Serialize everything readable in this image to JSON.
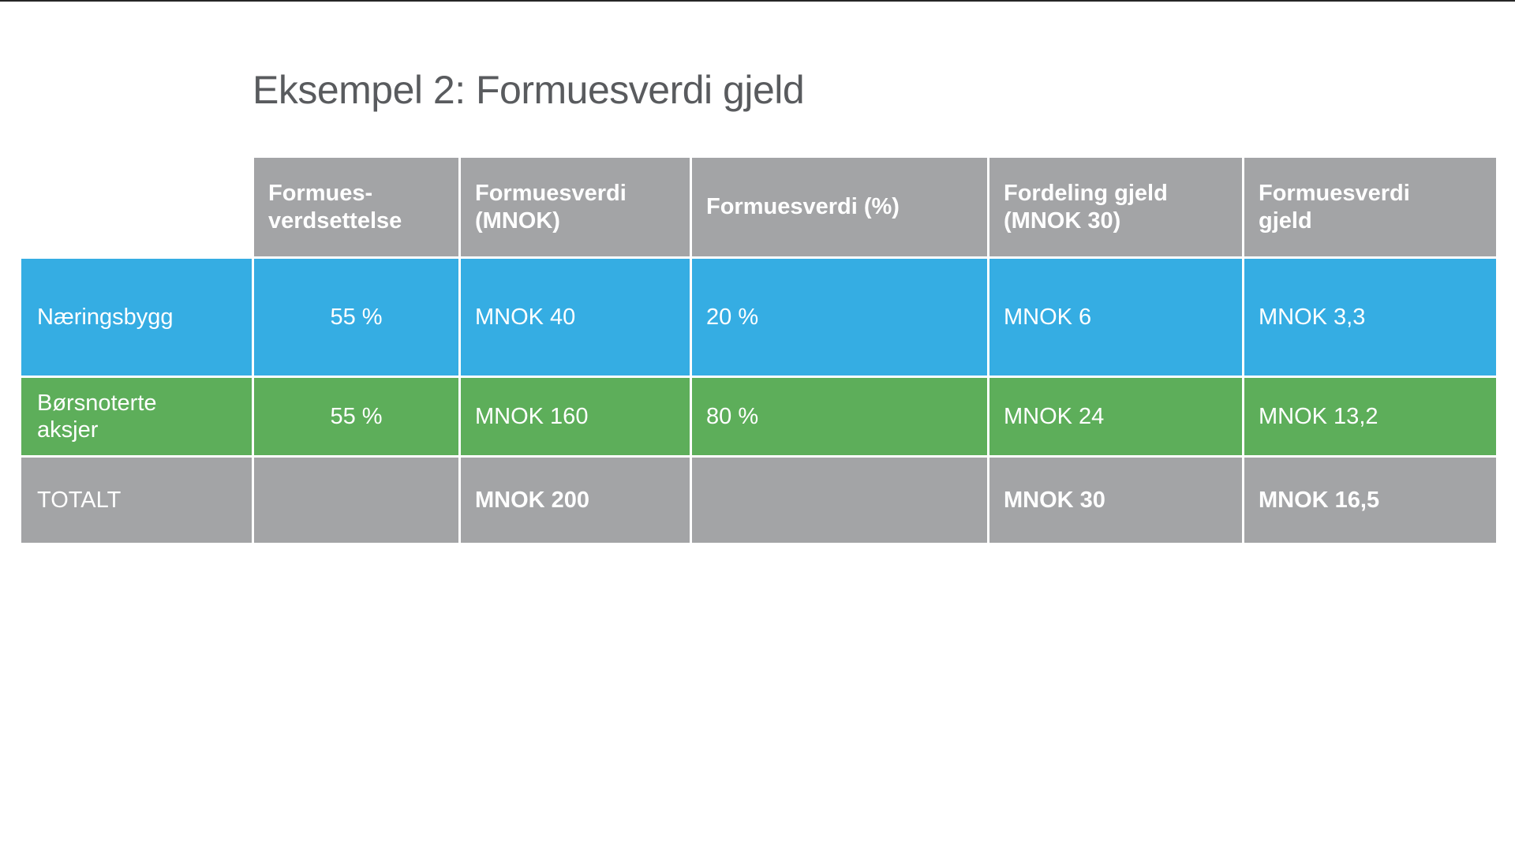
{
  "slide": {
    "title": "Eksempel 2: Formuesverdi gjeld"
  },
  "colors": {
    "top_line": "#262626",
    "title_text": "#595b5e",
    "header_bg": "#a3a4a6",
    "blue_row_bg": "#35ade3",
    "green_row_bg": "#5dae5a",
    "total_bg": "#a3a4a6",
    "cell_text": "#ffffff"
  },
  "table": {
    "headers": [
      "Formues-\nverdsettelse",
      "Formuesverdi\n(MNOK)",
      "Formuesverdi (%)",
      "Fordeling gjeld\n(MNOK 30)",
      "Formuesverdi\ngjeld"
    ],
    "rows": [
      {
        "label": "Næringsbygg",
        "values": [
          "55 %",
          "MNOK 40",
          "20 %",
          "MNOK 6",
          "MNOK 3,3"
        ]
      },
      {
        "label": "Børsnoterte\naksjer",
        "values": [
          "55 %",
          "MNOK 160",
          "80 %",
          "MNOK 24",
          "MNOK 13,2"
        ]
      },
      {
        "label": "TOTALT",
        "values": [
          "",
          "MNOK 200",
          "",
          "MNOK 30",
          "MNOK 16,5"
        ]
      }
    ]
  }
}
